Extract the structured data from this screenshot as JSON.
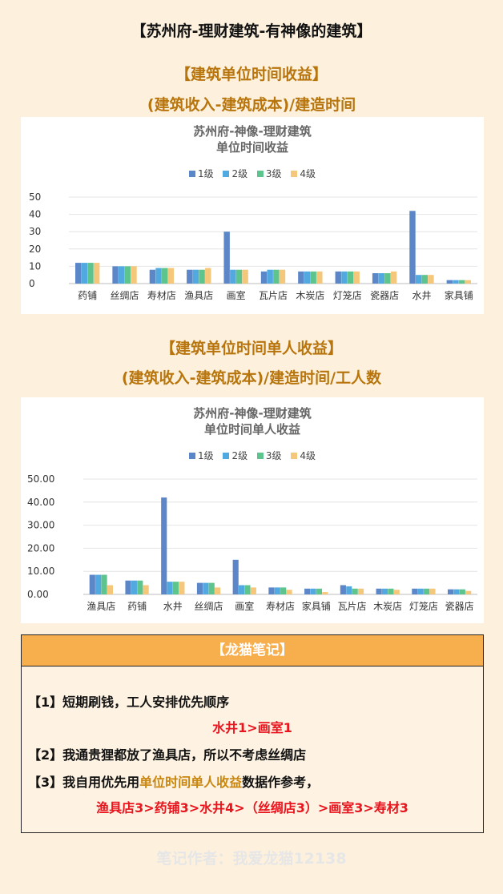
{
  "page": {
    "title": "【苏州府-理财建筑-有神像的建筑】"
  },
  "section1": {
    "title": "【建筑单位时间收益】",
    "subtitle": "(建筑收入-建筑成本)/建造时间"
  },
  "section2": {
    "title": "【建筑单位时间单人收益】",
    "subtitle": "(建筑收入-建筑成本)/建造时间/工人数"
  },
  "colors": {
    "level1": "#5b87c9",
    "level2": "#52a9e0",
    "level3": "#5cc48c",
    "level4": "#f5c77a"
  },
  "chart_data": [
    {
      "type": "bar",
      "title_line1": "苏州府-神像-理财建筑",
      "title_line2": "单位时间收益",
      "categories": [
        "药铺",
        "丝绸店",
        "寿材店",
        "渔具店",
        "画室",
        "瓦片店",
        "木炭店",
        "灯笼店",
        "瓷器店",
        "水井",
        "家具铺"
      ],
      "series": [
        {
          "name": "1级",
          "values": [
            12,
            10,
            8,
            8,
            30,
            7,
            7,
            7,
            6,
            42,
            2
          ]
        },
        {
          "name": "2级",
          "values": [
            12,
            10,
            9,
            8,
            8,
            8,
            7,
            7,
            6,
            5,
            2
          ]
        },
        {
          "name": "3级",
          "values": [
            12,
            10,
            9,
            8,
            8,
            8,
            7,
            7,
            6,
            5,
            2
          ]
        },
        {
          "name": "4级",
          "values": [
            12,
            10,
            9,
            9,
            8,
            8,
            7,
            7,
            7,
            5,
            2
          ]
        }
      ],
      "yticks": [
        "0",
        "10",
        "20",
        "30",
        "40",
        "50"
      ],
      "ylim": [
        0,
        50
      ],
      "legend": "top",
      "grid": true
    },
    {
      "type": "bar",
      "title_line1": "苏州府-神像-理财建筑",
      "title_line2": "单位时间单人收益",
      "categories": [
        "渔具店",
        "药铺",
        "水井",
        "丝绸店",
        "画室",
        "寿材店",
        "家具铺",
        "瓦片店",
        "木炭店",
        "灯笼店",
        "瓷器店"
      ],
      "series": [
        {
          "name": "1级",
          "values": [
            8.5,
            6.0,
            42.0,
            5.0,
            15.0,
            3.0,
            2.5,
            4.0,
            2.5,
            2.5,
            2.2
          ]
        },
        {
          "name": "2级",
          "values": [
            8.5,
            6.0,
            5.5,
            5.0,
            4.0,
            3.0,
            2.5,
            3.5,
            2.5,
            2.5,
            2.2
          ]
        },
        {
          "name": "3级",
          "values": [
            8.5,
            6.0,
            5.5,
            5.0,
            4.0,
            3.0,
            2.5,
            2.5,
            2.5,
            2.5,
            2.2
          ]
        },
        {
          "name": "4级",
          "values": [
            4.0,
            4.0,
            5.5,
            3.0,
            3.0,
            2.0,
            1.0,
            2.5,
            2.0,
            2.5,
            1.5
          ]
        }
      ],
      "yticks": [
        "0.00",
        "10.00",
        "20.00",
        "30.00",
        "40.00",
        "50.00"
      ],
      "ylim": [
        0,
        50
      ],
      "legend": "top",
      "grid": true
    }
  ],
  "note": {
    "header": "【龙猫笔记】",
    "line1": "【1】短期刷钱，工人安排优先顺序",
    "line1_result": "水井1>画室1",
    "line2": "【2】我通贵狸都放了渔具店，所以不考虑丝绸店",
    "line3_prefix": "【3】我自用优先用",
    "line3_highlight": "单位时间单人收益",
    "line3_suffix": "数据作参考，",
    "line3_result": "渔具店3>药铺3>水井4>（丝绸店3）>画室3>寿材3"
  },
  "footer": "笔记作者：我爱龙猫12138"
}
